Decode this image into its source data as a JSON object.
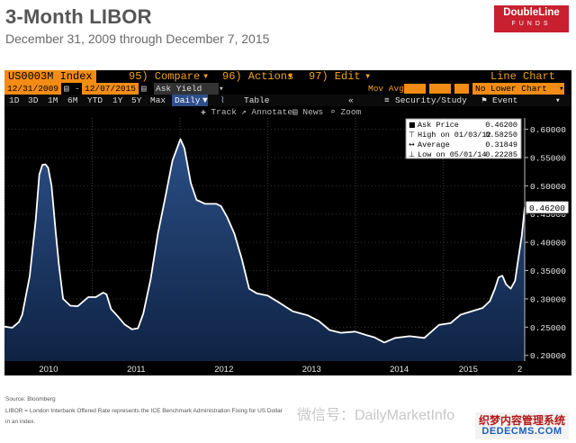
{
  "header": {
    "title": "3-Month LIBOR",
    "subtitle": "December 31, 2009 through December 7, 2015",
    "logo_top": "DoubleLine",
    "logo_bottom": "FUNDS"
  },
  "terminal": {
    "ticker": "US0003M Index",
    "compare": "95) Compare",
    "actions": "96) Actions",
    "edit": "97) Edit",
    "chart_type": "Line Chart",
    "start_date": "12/31/2009",
    "end_date": "12/07/2015",
    "field": "Ask Yield",
    "mov_avg": "Mov Avg",
    "lower_chart": "No Lower Chart",
    "periods": [
      "1D",
      "3D",
      "1M",
      "6M",
      "YTD",
      "1Y",
      "5Y",
      "Max"
    ],
    "frequency": "Daily",
    "table_label": "Table",
    "security_study": "Security/Study",
    "event": "Event",
    "tools": [
      "Track",
      "Annotate",
      "News",
      "Zoom"
    ],
    "colors": {
      "amber": "#f2a11a",
      "orange": "#f28c14",
      "fill": "#1c3a66",
      "line": "#ffffff"
    }
  },
  "legend": {
    "ask_price_label": "Ask Price",
    "ask_price_value": "0.46200",
    "high_label": "High on 01/03/12",
    "high_value": "0.58250",
    "average_label": "Average",
    "average_value": "0.31849",
    "low_label": "Low on 05/01/14",
    "low_value": "0.22285"
  },
  "last_value_tag": "0.46200",
  "footer": {
    "source": "Source:  Bloomberg",
    "note_line1": "LIBOR = London Interbank Offered Rate represents the ICE Benchmark Administration Fixing for US Dollar",
    "note_line2": "in an index."
  },
  "watermark": {
    "text": "微信号：DailyMarketInfo",
    "site_cn": "织梦内容管理系统",
    "site_en": "DEDECMS.COM"
  },
  "chart_data": {
    "type": "area",
    "title": "",
    "xlabel": "",
    "ylabel": "",
    "x_ticks": [
      "2010",
      "2011",
      "2012",
      "2013",
      "2014",
      "2015"
    ],
    "y_ticks": [
      "0.60000",
      "0.55000",
      "0.50000",
      "0.45000",
      "0.40000",
      "0.35000",
      "0.30000",
      "0.25000",
      "0.20000"
    ],
    "xlim": [
      "2009-12-31",
      "2015-12-07"
    ],
    "ylim": [
      0.19,
      0.62
    ],
    "series": [
      {
        "name": "US0003M Index",
        "points": [
          [
            "2009-12-31",
            0.251
          ],
          [
            "2010-02-01",
            0.249
          ],
          [
            "2010-03-01",
            0.259
          ],
          [
            "2010-03-15",
            0.272
          ],
          [
            "2010-04-15",
            0.34
          ],
          [
            "2010-05-10",
            0.44
          ],
          [
            "2010-05-25",
            0.52
          ],
          [
            "2010-06-07",
            0.537
          ],
          [
            "2010-06-20",
            0.538
          ],
          [
            "2010-07-01",
            0.532
          ],
          [
            "2010-07-15",
            0.5
          ],
          [
            "2010-08-01",
            0.42
          ],
          [
            "2010-08-15",
            0.36
          ],
          [
            "2010-09-01",
            0.3
          ],
          [
            "2010-10-01",
            0.288
          ],
          [
            "2010-11-01",
            0.287
          ],
          [
            "2010-12-15",
            0.303
          ],
          [
            "2011-01-15",
            0.303
          ],
          [
            "2011-02-15",
            0.311
          ],
          [
            "2011-03-01",
            0.308
          ],
          [
            "2011-03-20",
            0.282
          ],
          [
            "2011-04-15",
            0.27
          ],
          [
            "2011-05-15",
            0.255
          ],
          [
            "2011-06-15",
            0.246
          ],
          [
            "2011-07-10",
            0.248
          ],
          [
            "2011-08-01",
            0.274
          ],
          [
            "2011-09-01",
            0.335
          ],
          [
            "2011-10-01",
            0.415
          ],
          [
            "2011-11-01",
            0.48
          ],
          [
            "2011-12-01",
            0.545
          ],
          [
            "2012-01-03",
            0.5825
          ],
          [
            "2012-01-20",
            0.566
          ],
          [
            "2012-02-15",
            0.505
          ],
          [
            "2012-03-10",
            0.475
          ],
          [
            "2012-04-15",
            0.468
          ],
          [
            "2012-06-01",
            0.468
          ],
          [
            "2012-06-20",
            0.464
          ],
          [
            "2012-07-15",
            0.445
          ],
          [
            "2012-08-15",
            0.415
          ],
          [
            "2012-09-15",
            0.37
          ],
          [
            "2012-10-15",
            0.318
          ],
          [
            "2012-11-15",
            0.31
          ],
          [
            "2012-12-31",
            0.306
          ],
          [
            "2013-02-15",
            0.294
          ],
          [
            "2013-04-15",
            0.278
          ],
          [
            "2013-06-15",
            0.271
          ],
          [
            "2013-08-01",
            0.261
          ],
          [
            "2013-09-15",
            0.245
          ],
          [
            "2013-11-01",
            0.24
          ],
          [
            "2013-12-31",
            0.242
          ],
          [
            "2014-02-15",
            0.236
          ],
          [
            "2014-03-20",
            0.232
          ],
          [
            "2014-05-01",
            0.22285
          ],
          [
            "2014-06-15",
            0.231
          ],
          [
            "2014-08-15",
            0.234
          ],
          [
            "2014-10-15",
            0.231
          ],
          [
            "2014-12-15",
            0.254
          ],
          [
            "2015-02-01",
            0.257
          ],
          [
            "2015-03-15",
            0.272
          ],
          [
            "2015-05-15",
            0.28
          ],
          [
            "2015-06-15",
            0.284
          ],
          [
            "2015-07-15",
            0.296
          ],
          [
            "2015-08-05",
            0.318
          ],
          [
            "2015-08-20",
            0.338
          ],
          [
            "2015-09-05",
            0.341
          ],
          [
            "2015-09-20",
            0.326
          ],
          [
            "2015-10-10",
            0.318
          ],
          [
            "2015-10-28",
            0.332
          ],
          [
            "2015-11-10",
            0.37
          ],
          [
            "2015-11-25",
            0.412
          ],
          [
            "2015-12-07",
            0.462
          ]
        ]
      }
    ]
  }
}
